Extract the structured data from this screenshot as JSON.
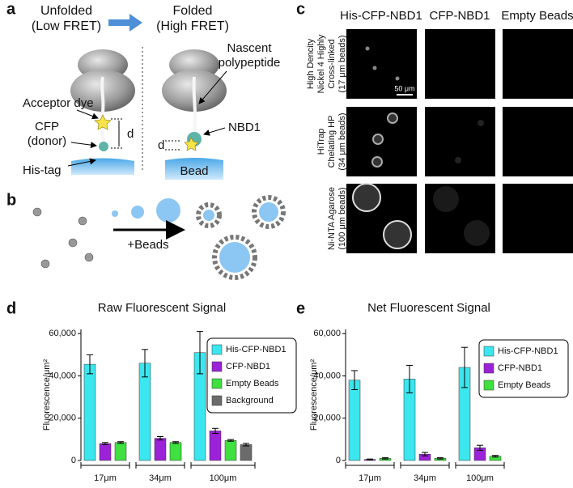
{
  "panels": {
    "a": "a",
    "b": "b",
    "c": "c",
    "d": "d",
    "e": "e"
  },
  "diagram_a": {
    "unfolded": [
      "Unfolded",
      "(Low FRET)"
    ],
    "folded": [
      "Folded",
      "(High FRET)"
    ],
    "acceptor": "Acceptor dye",
    "cfp": [
      "CFP",
      "(donor)"
    ],
    "histag": "His-tag",
    "d_left": "d",
    "nascent": [
      "Nascent",
      "polypeptide"
    ],
    "nbd1": "NBD1",
    "d_right": "d",
    "bead": "Bead"
  },
  "diagram_b": {
    "beads": "+Beads"
  },
  "micrographs": {
    "columns": [
      "His-CFP-NBD1",
      "CFP-NBD1",
      "Empty Beads"
    ],
    "rows": [
      [
        "High Dencity",
        "Nickel 4 Highly",
        "Cross-linked",
        "(17 μm beads)"
      ],
      [
        "HiTrap",
        "Chelating HP",
        "(34 μm beads)"
      ],
      [
        "Ni-NTA Agarose",
        "(100 μm beads)"
      ]
    ],
    "scale_bar": "50 μm"
  },
  "chart_data": [
    {
      "type": "bar",
      "title": "Raw Fluorescent Signal",
      "y_label": "Fluorescence/μm²",
      "categories": [
        "17μm",
        "34μm",
        "100μm"
      ],
      "series": [
        {
          "name": "His-CFP-NBD1",
          "color": "#3be6ee",
          "values": [
            45500,
            46000,
            51000
          ],
          "errors": [
            4500,
            6500,
            10000
          ]
        },
        {
          "name": "CFP-NBD1",
          "color": "#9b22d6",
          "values": [
            8000,
            10500,
            14000
          ],
          "errors": [
            500,
            800,
            1200
          ]
        },
        {
          "name": "Empty Beads",
          "color": "#3fe03f",
          "values": [
            8500,
            8500,
            9500
          ],
          "errors": [
            400,
            400,
            400
          ]
        },
        {
          "name": "Background",
          "color": "#6b6b6b",
          "values": [
            null,
            null,
            7500
          ],
          "errors": [
            null,
            null,
            600
          ]
        }
      ],
      "ylim": [
        0,
        62000
      ],
      "yticks": [
        0,
        {
          "value": 20000,
          "label": "20,000"
        },
        {
          "value": 40000,
          "label": "40,000"
        },
        {
          "value": 60000,
          "label": "60,000"
        }
      ]
    },
    {
      "type": "bar",
      "title": "Net Fluorescent Signal",
      "y_label": "Fluorescence/μm²",
      "categories": [
        "17μm",
        "34μm",
        "100μm"
      ],
      "series": [
        {
          "name": "His-CFP-NBD1",
          "color": "#3be6ee",
          "values": [
            38000,
            38500,
            44000
          ],
          "errors": [
            4500,
            6500,
            9500
          ]
        },
        {
          "name": "CFP-NBD1",
          "color": "#9b22d6",
          "values": [
            500,
            3000,
            6000
          ],
          "errors": [
            200,
            800,
            1200
          ]
        },
        {
          "name": "Empty Beads",
          "color": "#3fe03f",
          "values": [
            1000,
            1000,
            2000
          ],
          "errors": [
            300,
            300,
            400
          ]
        }
      ],
      "ylim": [
        0,
        62000
      ],
      "yticks": [
        0,
        {
          "value": 20000,
          "label": "20,000"
        },
        {
          "value": 40000,
          "label": "40,000"
        },
        {
          "value": 60000,
          "label": "60,000"
        }
      ]
    }
  ]
}
